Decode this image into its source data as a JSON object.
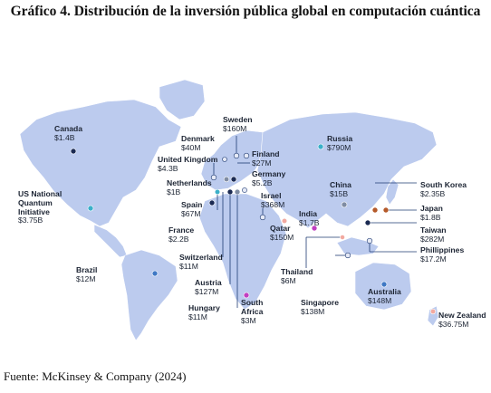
{
  "title": "Gráfico 4. Distribución de la inversión pública global en computación cuántica",
  "source": "Fuente: McKinsey & Company (2024)",
  "colors": {
    "land": "#bccbee",
    "leader_line": "#1f3b73",
    "marker_palette": {
      "navy": "#1b2a52",
      "teal": "#3bb0c9",
      "blue": "#3f78c4",
      "purple": "#c13fc1",
      "orange": "#b55a2a",
      "gray": "#7f8ca3",
      "light": "#e6eaf6",
      "pink": "#f2a9a0"
    }
  },
  "countries": [
    {
      "name": "Canada",
      "value": "$1.4B",
      "marker": "navy"
    },
    {
      "name": "US National Quantum Initiative",
      "value": "$3.75B",
      "marker": "teal"
    },
    {
      "name": "Brazil",
      "value": "$12M",
      "marker": "blue"
    },
    {
      "name": "Denmark",
      "value": "$40M",
      "marker": "light"
    },
    {
      "name": "Sweden",
      "value": "$160M",
      "marker": "light"
    },
    {
      "name": "Finland",
      "value": "$27M",
      "marker": "light"
    },
    {
      "name": "United Kingdom",
      "value": "$4.3B",
      "marker": "light"
    },
    {
      "name": "Germany",
      "value": "$5.2B",
      "marker": "navy"
    },
    {
      "name": "Netherlands",
      "value": "$1B",
      "marker": "gray"
    },
    {
      "name": "Spain",
      "value": "$67M",
      "marker": "teal"
    },
    {
      "name": "France",
      "value": "$2.2B",
      "marker": "navy"
    },
    {
      "name": "Israel",
      "value": "$368M",
      "marker": "light"
    },
    {
      "name": "Switzerland",
      "value": "$11M",
      "marker": "navy"
    },
    {
      "name": "Austria",
      "value": "$127M",
      "marker": "gray"
    },
    {
      "name": "Hungary",
      "value": "$11M",
      "marker": "light"
    },
    {
      "name": "South Africa",
      "value": "$3M",
      "marker": "purple"
    },
    {
      "name": "Qatar",
      "value": "$150M",
      "marker": "pink"
    },
    {
      "name": "India",
      "value": "$1.7B",
      "marker": "purple"
    },
    {
      "name": "Russia",
      "value": "$790M",
      "marker": "teal"
    },
    {
      "name": "China",
      "value": "$15B",
      "marker": "gray"
    },
    {
      "name": "Thailand",
      "value": "$6M",
      "marker": "pink"
    },
    {
      "name": "Singapore",
      "value": "$138M",
      "marker": "light"
    },
    {
      "name": "Australia",
      "value": "$148M",
      "marker": "blue"
    },
    {
      "name": "South Korea",
      "value": "$2.35B",
      "marker": "orange"
    },
    {
      "name": "Japan",
      "value": "$1.8B",
      "marker": "orange"
    },
    {
      "name": "Taiwan",
      "value": "$282M",
      "marker": "navy"
    },
    {
      "name": "Phillippines",
      "value": "$17.2M",
      "marker": "light"
    },
    {
      "name": "New Zealand",
      "value": "$36.75M",
      "marker": "pink"
    }
  ]
}
